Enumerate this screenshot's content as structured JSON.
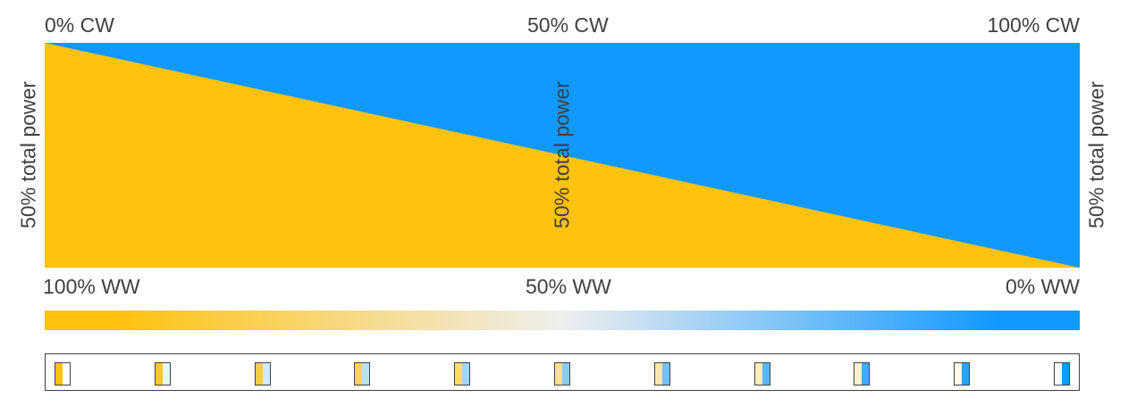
{
  "top_labels": {
    "left": "0% CW",
    "center": "50% CW",
    "right": "100% CW"
  },
  "bottom_labels": {
    "left": "100% WW",
    "center": "50% WW",
    "right": "0% WW"
  },
  "power_label": "50% total power",
  "colors": {
    "warm": "#FFC20E",
    "cool": "#1099FF",
    "neutral": "#EEEEEE",
    "frame": "#404040"
  },
  "steps": [
    {
      "ww": 100,
      "cw": 0
    },
    {
      "ww": 90,
      "cw": 10
    },
    {
      "ww": 80,
      "cw": 20
    },
    {
      "ww": 70,
      "cw": 30
    },
    {
      "ww": 60,
      "cw": 40
    },
    {
      "ww": 50,
      "cw": 50
    },
    {
      "ww": 40,
      "cw": 60
    },
    {
      "ww": 30,
      "cw": 70
    },
    {
      "ww": 20,
      "cw": 80
    },
    {
      "ww": 10,
      "cw": 90
    },
    {
      "ww": 0,
      "cw": 100
    }
  ]
}
